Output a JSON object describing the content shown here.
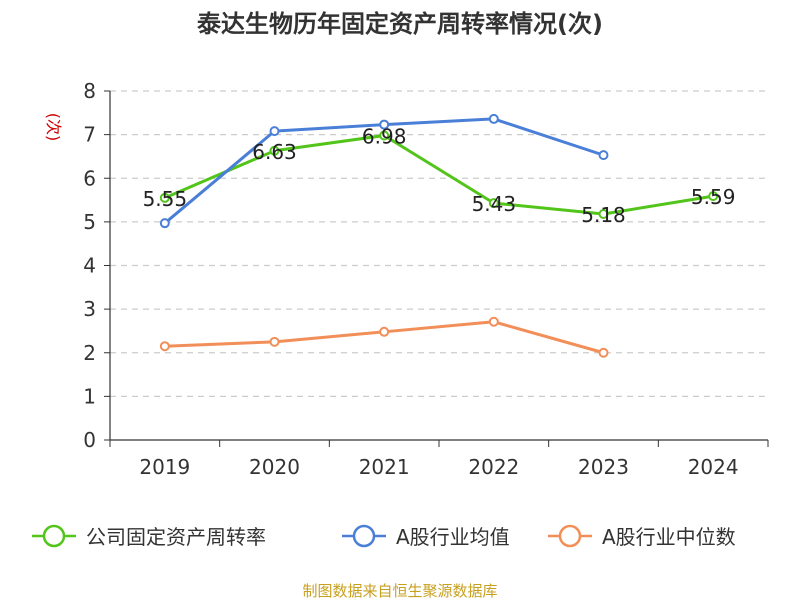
{
  "chart_data": {
    "type": "line",
    "title": "泰达生物历年固定资产周转率情况(次)",
    "ylabel": "(次)",
    "xlabel": "",
    "categories": [
      "2019",
      "2020",
      "2021",
      "2022",
      "2023",
      "2024"
    ],
    "ylim": [
      0,
      8
    ],
    "yticks": [
      "0",
      "1",
      "2",
      "3",
      "4",
      "5",
      "6",
      "7",
      "8"
    ],
    "grid": true,
    "legend_position": "bottom",
    "series": [
      {
        "name": "公司固定资产周转率",
        "color": "#52c41a",
        "values": [
          5.55,
          6.63,
          6.98,
          5.43,
          5.18,
          5.59
        ],
        "labels": [
          "5.55",
          "6.63",
          "6.98",
          "5.43",
          "5.18",
          "5.59"
        ],
        "show_labels": true
      },
      {
        "name": "A股行业均值",
        "color": "#4a7fd8",
        "values": [
          4.97,
          7.08,
          7.23,
          7.36,
          6.53,
          null
        ],
        "show_labels": false
      },
      {
        "name": "A股行业中位数",
        "color": "#f28e58",
        "values": [
          2.15,
          2.25,
          2.48,
          2.71,
          2.0,
          null
        ],
        "show_labels": false
      }
    ],
    "source": "制图数据来自恒生聚源数据库"
  }
}
